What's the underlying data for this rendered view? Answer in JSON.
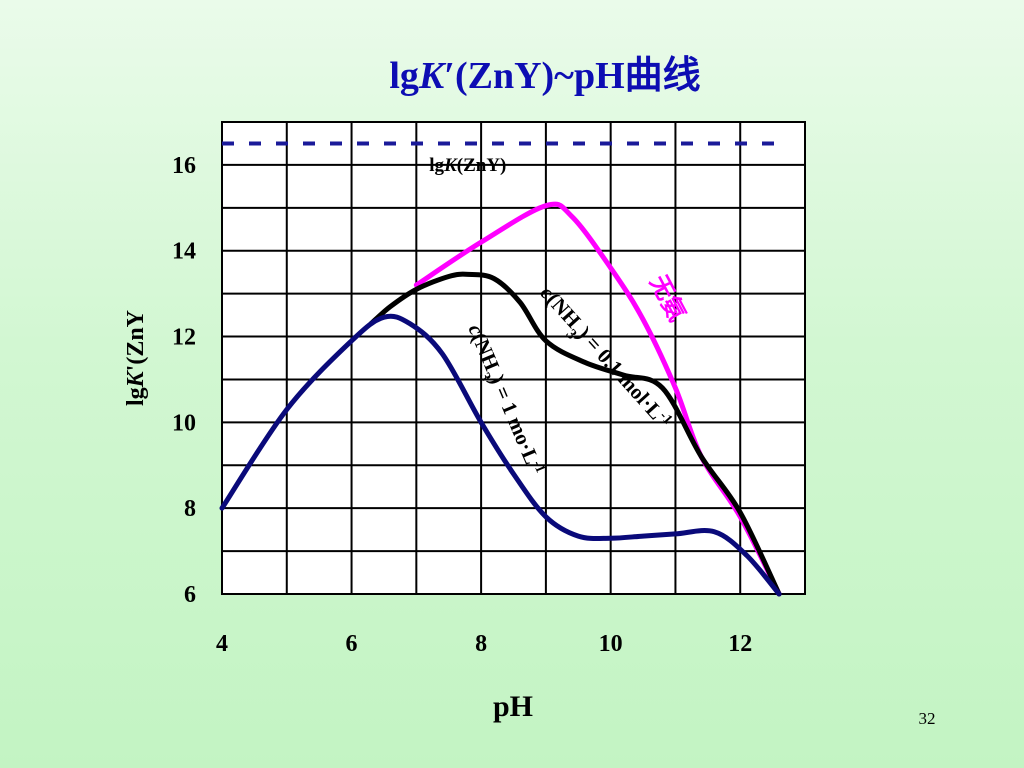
{
  "slide": {
    "page_number": "32"
  },
  "colors": {
    "title": "#0d0db3",
    "grid": "#000000",
    "no_ammonia": "#ff00ff",
    "nh3_0_1": "#000000",
    "nh3_1": "#0a0a7a",
    "reference": "#1a1a99"
  },
  "chart_data": {
    "type": "line",
    "title_parts": {
      "prefix": "lg",
      "italic": "K",
      "prime": "′",
      "suffix": "(ZnY)~pH曲线"
    },
    "xlabel": "pH",
    "ylabel_parts": {
      "prefix": "lg",
      "italic": "K",
      "suffix": "'(ZnY"
    },
    "xlim": [
      4,
      13
    ],
    "ylim": [
      6,
      17
    ],
    "x_ticks": [
      "4",
      "6",
      "8",
      "10",
      "12"
    ],
    "x_tick_values": [
      4,
      6,
      8,
      10,
      12
    ],
    "y_ticks": [
      "6",
      "8",
      "10",
      "12",
      "14",
      "16"
    ],
    "y_tick_values": [
      6,
      8,
      10,
      12,
      14,
      16
    ],
    "grid": true,
    "reference_line": {
      "value": 16.5,
      "style": "dashed",
      "label_prefix": "lg",
      "label_italic": "K",
      "label_suffix": "(ZnY)"
    },
    "series": [
      {
        "key": "no_ammonia",
        "name": "无氨",
        "points": [
          [
            7.0,
            13.2
          ],
          [
            8.0,
            14.2
          ],
          [
            9.0,
            15.05
          ],
          [
            9.4,
            14.8
          ],
          [
            10.0,
            13.6
          ],
          [
            10.5,
            12.4
          ],
          [
            11.0,
            10.8
          ],
          [
            11.4,
            9.2
          ],
          [
            12.0,
            7.8
          ],
          [
            12.6,
            6.0
          ]
        ]
      },
      {
        "key": "nh3_0_1",
        "label_c": "c",
        "label_mid": "(NH",
        "label_sub": "3",
        "label_end": ") = 0.1 mol·L",
        "label_sup": "-1",
        "points": [
          [
            6.3,
            12.3
          ],
          [
            6.6,
            12.7
          ],
          [
            7.0,
            13.1
          ],
          [
            7.5,
            13.4
          ],
          [
            7.8,
            13.45
          ],
          [
            8.2,
            13.35
          ],
          [
            8.6,
            12.8
          ],
          [
            9.0,
            11.9
          ],
          [
            9.6,
            11.4
          ],
          [
            10.2,
            11.1
          ],
          [
            10.8,
            10.8
          ],
          [
            11.4,
            9.2
          ],
          [
            12.0,
            7.9
          ],
          [
            12.6,
            6.0
          ]
        ]
      },
      {
        "key": "nh3_1",
        "label_c": "c",
        "label_mid": "(NH",
        "label_sub": "3",
        "label_end": ") = 1 mo·L",
        "label_sup": "-1",
        "points": [
          [
            4.0,
            8.0
          ],
          [
            5.0,
            10.3
          ],
          [
            6.0,
            11.9
          ],
          [
            6.5,
            12.45
          ],
          [
            6.9,
            12.3
          ],
          [
            7.4,
            11.6
          ],
          [
            8.0,
            10.0
          ],
          [
            8.5,
            8.8
          ],
          [
            9.0,
            7.8
          ],
          [
            9.5,
            7.35
          ],
          [
            10.0,
            7.3
          ],
          [
            10.5,
            7.35
          ],
          [
            11.0,
            7.4
          ],
          [
            11.6,
            7.45
          ],
          [
            12.1,
            6.9
          ],
          [
            12.6,
            6.0
          ]
        ]
      }
    ]
  }
}
